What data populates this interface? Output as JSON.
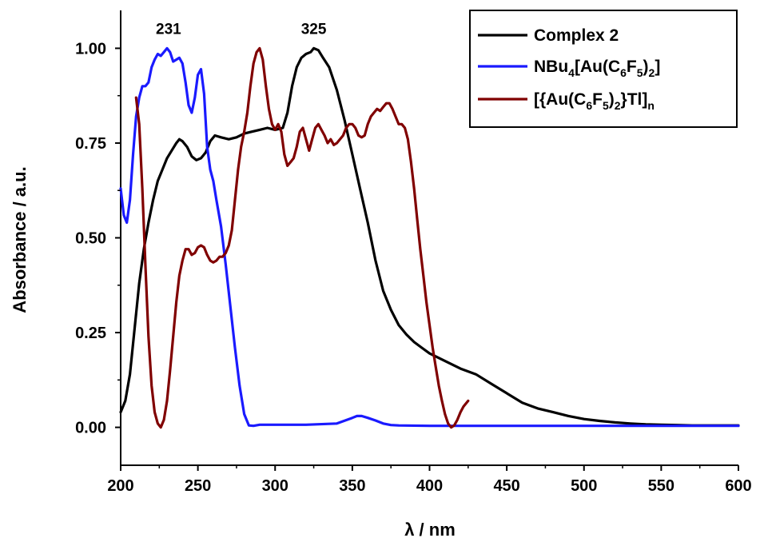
{
  "chart_data": {
    "type": "line",
    "xlabel": "λ / nm",
    "ylabel": "Absorbance / a.u.",
    "xlim": [
      200,
      600
    ],
    "ylim": [
      -0.1,
      1.1
    ],
    "xticks": [
      200,
      250,
      300,
      350,
      400,
      450,
      500,
      550,
      600
    ],
    "yticks": [
      0.0,
      0.25,
      0.5,
      0.75,
      1.0
    ],
    "xtick_labels": [
      "200",
      "250",
      "300",
      "350",
      "400",
      "450",
      "500",
      "550",
      "600"
    ],
    "ytick_labels": [
      "0.00",
      "0.25",
      "0.50",
      "0.75",
      "1.00"
    ],
    "legend_position": "top-right",
    "annotations": [
      {
        "text": "231",
        "x": 231,
        "y": 1.0
      },
      {
        "text": "325",
        "x": 325,
        "y": 1.0
      }
    ],
    "series": [
      {
        "name": "Complex 2",
        "legend_parts": [
          {
            "t": "Complex 2"
          }
        ],
        "color": "#000000",
        "x": [
          200,
          203,
          206,
          209,
          212,
          215,
          218,
          221,
          224,
          227,
          230,
          233,
          236,
          238,
          240,
          243,
          246,
          249,
          252,
          255,
          258,
          261,
          265,
          270,
          275,
          280,
          285,
          290,
          295,
          300,
          305,
          308,
          311,
          314,
          317,
          320,
          323,
          325,
          328,
          331,
          335,
          340,
          345,
          350,
          355,
          360,
          365,
          370,
          375,
          380,
          385,
          390,
          395,
          400,
          410,
          420,
          430,
          440,
          450,
          460,
          470,
          480,
          490,
          500,
          510,
          520,
          530,
          540,
          550,
          560,
          570,
          580,
          590,
          600
        ],
        "y": [
          0.04,
          0.07,
          0.14,
          0.26,
          0.38,
          0.47,
          0.54,
          0.6,
          0.65,
          0.68,
          0.71,
          0.73,
          0.75,
          0.76,
          0.755,
          0.74,
          0.715,
          0.705,
          0.71,
          0.725,
          0.755,
          0.77,
          0.765,
          0.76,
          0.765,
          0.775,
          0.78,
          0.785,
          0.79,
          0.785,
          0.79,
          0.83,
          0.9,
          0.95,
          0.975,
          0.985,
          0.99,
          1.0,
          0.995,
          0.975,
          0.95,
          0.89,
          0.81,
          0.72,
          0.63,
          0.54,
          0.44,
          0.36,
          0.31,
          0.27,
          0.245,
          0.225,
          0.21,
          0.195,
          0.175,
          0.155,
          0.14,
          0.115,
          0.09,
          0.065,
          0.05,
          0.04,
          0.03,
          0.022,
          0.017,
          0.013,
          0.01,
          0.008,
          0.007,
          0.006,
          0.005,
          0.005,
          0.005,
          0.005
        ]
      },
      {
        "name": "NBu4[Au(C6F5)2]",
        "legend_parts": [
          {
            "t": "NBu"
          },
          {
            "t": "4",
            "sub": true
          },
          {
            "t": "[Au(C"
          },
          {
            "t": "6",
            "sub": true
          },
          {
            "t": "F"
          },
          {
            "t": "5",
            "sub": true
          },
          {
            "t": ")"
          },
          {
            "t": "2",
            "sub": true
          },
          {
            "t": "]"
          }
        ],
        "color": "#1a1aff",
        "x": [
          200,
          202,
          204,
          206,
          208,
          210,
          212,
          214,
          216,
          218,
          220,
          222,
          224,
          226,
          228,
          230,
          232,
          234,
          236,
          238,
          240,
          242,
          244,
          246,
          248,
          250,
          252,
          254,
          256,
          258,
          260,
          262,
          265,
          268,
          271,
          274,
          277,
          280,
          283,
          286,
          290,
          300,
          320,
          340,
          350,
          353,
          356,
          360,
          365,
          370,
          375,
          380,
          400,
          450,
          500,
          550,
          600
        ],
        "y": [
          0.63,
          0.56,
          0.54,
          0.6,
          0.72,
          0.82,
          0.87,
          0.9,
          0.9,
          0.91,
          0.95,
          0.97,
          0.985,
          0.98,
          0.99,
          1.0,
          0.99,
          0.965,
          0.97,
          0.975,
          0.96,
          0.91,
          0.85,
          0.83,
          0.87,
          0.93,
          0.945,
          0.88,
          0.74,
          0.68,
          0.65,
          0.6,
          0.53,
          0.43,
          0.32,
          0.21,
          0.11,
          0.035,
          0.005,
          0.004,
          0.007,
          0.007,
          0.007,
          0.01,
          0.025,
          0.03,
          0.03,
          0.025,
          0.018,
          0.01,
          0.006,
          0.005,
          0.004,
          0.004,
          0.004,
          0.004,
          0.004
        ]
      },
      {
        "name": "[{Au(C6F5)2}Tl]n",
        "legend_parts": [
          {
            "t": "[{Au(C"
          },
          {
            "t": "6",
            "sub": true
          },
          {
            "t": "F"
          },
          {
            "t": "5",
            "sub": true
          },
          {
            "t": ")"
          },
          {
            "t": "2",
            "sub": true
          },
          {
            "t": "}Tl]"
          },
          {
            "t": "n",
            "sub": true
          }
        ],
        "color": "#800000",
        "x": [
          210,
          212,
          214,
          216,
          218,
          220,
          222,
          224,
          226,
          228,
          230,
          232,
          234,
          236,
          238,
          240,
          242,
          244,
          246,
          248,
          250,
          252,
          254,
          256,
          258,
          260,
          262,
          264,
          266,
          268,
          270,
          272,
          274,
          276,
          278,
          280,
          282,
          284,
          286,
          288,
          290,
          292,
          294,
          296,
          298,
          300,
          302,
          304,
          306,
          308,
          310,
          312,
          314,
          316,
          318,
          320,
          322,
          324,
          326,
          328,
          330,
          332,
          334,
          336,
          338,
          340,
          342,
          344,
          346,
          348,
          350,
          352,
          354,
          356,
          358,
          360,
          362,
          364,
          366,
          368,
          370,
          372,
          374,
          376,
          378,
          380,
          382,
          384,
          386,
          388,
          390,
          392,
          394,
          396,
          398,
          400,
          402,
          404,
          406,
          408,
          410,
          412,
          414,
          416,
          418,
          420,
          422,
          425
        ],
        "y": [
          0.87,
          0.8,
          0.63,
          0.43,
          0.24,
          0.11,
          0.04,
          0.01,
          0.0,
          0.02,
          0.07,
          0.15,
          0.24,
          0.33,
          0.4,
          0.44,
          0.47,
          0.47,
          0.455,
          0.46,
          0.475,
          0.48,
          0.475,
          0.455,
          0.44,
          0.435,
          0.44,
          0.45,
          0.45,
          0.46,
          0.48,
          0.52,
          0.6,
          0.68,
          0.74,
          0.78,
          0.83,
          0.9,
          0.96,
          0.99,
          1.0,
          0.97,
          0.9,
          0.84,
          0.8,
          0.785,
          0.8,
          0.78,
          0.72,
          0.69,
          0.7,
          0.71,
          0.74,
          0.78,
          0.79,
          0.76,
          0.73,
          0.76,
          0.79,
          0.8,
          0.785,
          0.77,
          0.75,
          0.76,
          0.745,
          0.75,
          0.76,
          0.77,
          0.79,
          0.8,
          0.8,
          0.79,
          0.77,
          0.765,
          0.77,
          0.8,
          0.82,
          0.83,
          0.84,
          0.835,
          0.845,
          0.855,
          0.855,
          0.84,
          0.82,
          0.8,
          0.8,
          0.79,
          0.76,
          0.7,
          0.63,
          0.55,
          0.47,
          0.4,
          0.33,
          0.27,
          0.21,
          0.16,
          0.11,
          0.07,
          0.035,
          0.01,
          0.0,
          0.005,
          0.02,
          0.04,
          0.055,
          0.07
        ]
      }
    ]
  }
}
